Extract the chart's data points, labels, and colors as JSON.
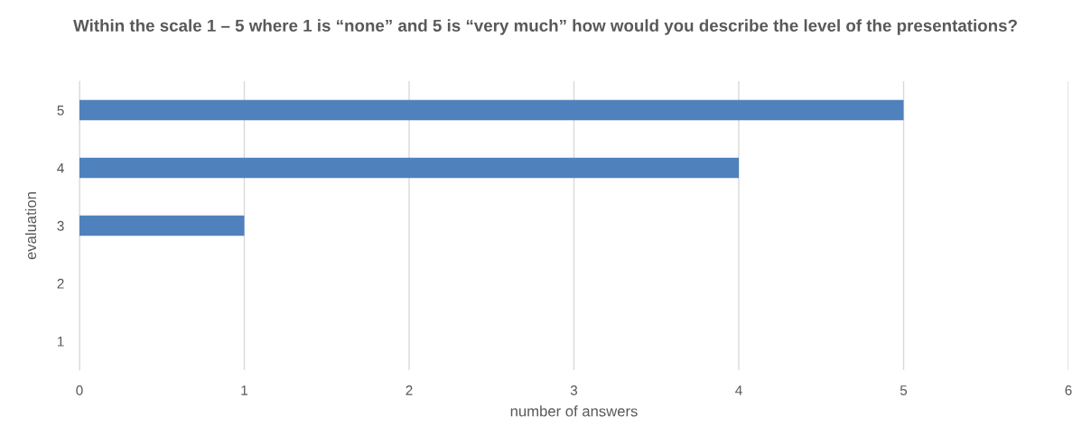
{
  "chart_data": {
    "type": "bar",
    "orientation": "horizontal",
    "title": "Within the scale 1 – 5 where 1 is “none” and 5 is “very much” how would you describe the level of the presentations?",
    "xlabel": "number of answers",
    "ylabel": "evaluation",
    "categories": [
      "5",
      "4",
      "3",
      "2",
      "1"
    ],
    "values": [
      5,
      4,
      1,
      0,
      0
    ],
    "color": "#4f81bd",
    "xlim": [
      0,
      6
    ],
    "xticks": [
      0,
      1,
      2,
      3,
      4,
      5,
      6
    ],
    "grid": "x",
    "legend": false
  }
}
